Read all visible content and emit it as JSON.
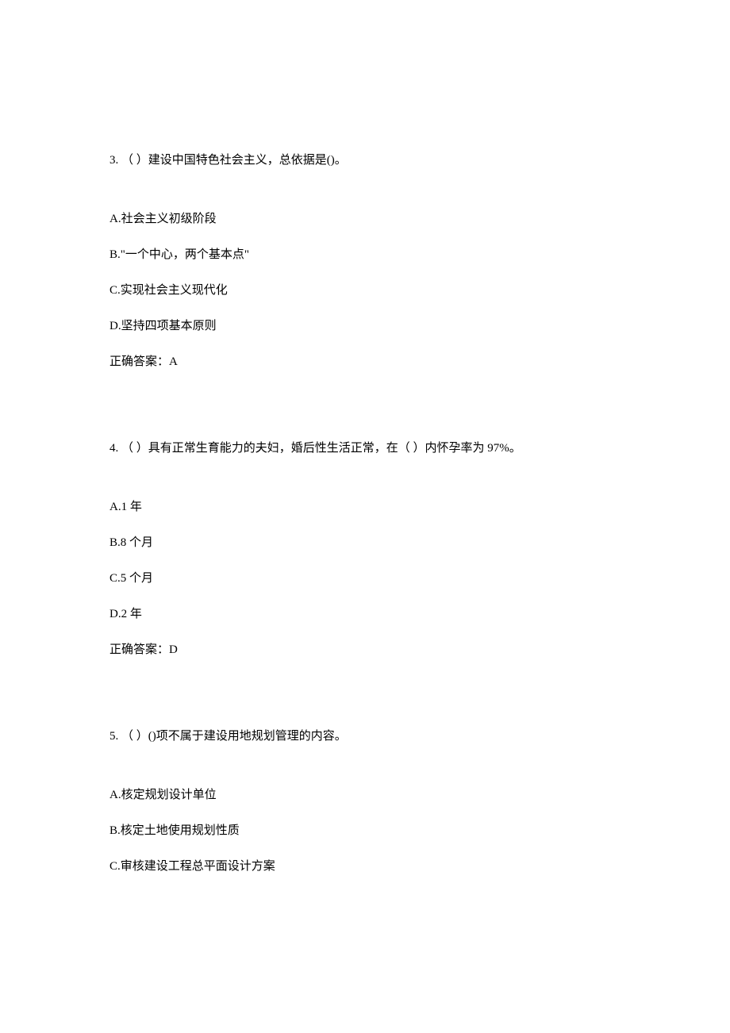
{
  "questions": [
    {
      "number": "3.",
      "prompt": "（ ）建设中国特色社会主义，总依据是()。",
      "options": [
        "A.社会主义初级阶段",
        "B.\"一个中心，两个基本点\"",
        "C.实现社会主义现代化",
        "D.坚持四项基本原则"
      ],
      "answer": "正确答案：A"
    },
    {
      "number": "4.",
      "prompt": "（ ）具有正常生育能力的夫妇，婚后性生活正常，在（ ）内怀孕率为 97%。",
      "options": [
        "A.1 年",
        "B.8 个月",
        "C.5 个月",
        "D.2 年"
      ],
      "answer": "正确答案：D"
    },
    {
      "number": "5.",
      "prompt": "（ ）()项不属于建设用地规划管理的内容。",
      "options": [
        "A.核定规划设计单位",
        "B.核定土地使用规划性质",
        "C.审核建设工程总平面设计方案"
      ],
      "answer": null
    }
  ]
}
